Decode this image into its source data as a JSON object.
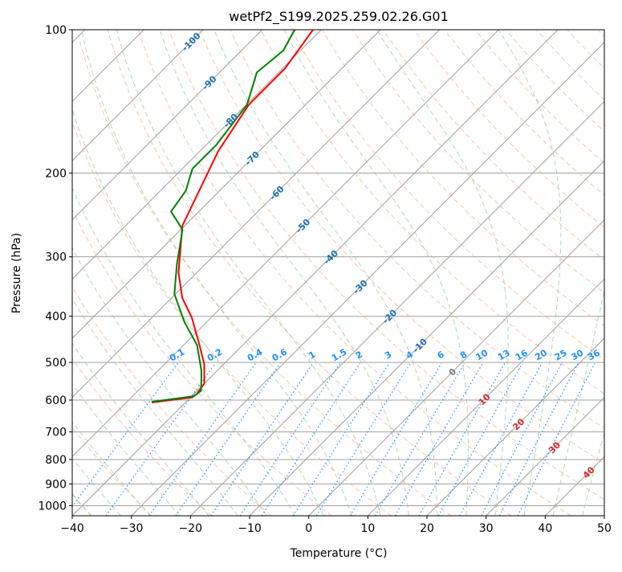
{
  "chart_data": {
    "type": "line",
    "subtype": "skew-t log-p",
    "title": "wetPf2_S199.2025.259.02.26.G01",
    "xlabel": "Temperature (°C)",
    "ylabel": "Pressure (hPa)",
    "xlim": [
      -40,
      50
    ],
    "ylim": [
      1050,
      100
    ],
    "x_ticks": [
      "−40",
      "−30",
      "−20",
      "−10",
      "0",
      "10",
      "20",
      "30",
      "40",
      "50"
    ],
    "x_tick_values": [
      -40,
      -30,
      -20,
      -10,
      0,
      10,
      20,
      30,
      40,
      50
    ],
    "y_ticks": [
      "100",
      "200",
      "300",
      "400",
      "500",
      "600",
      "700",
      "800",
      "900",
      "1000"
    ],
    "y_tick_values": [
      100,
      200,
      300,
      400,
      500,
      600,
      700,
      800,
      900,
      1000
    ],
    "grid": true,
    "series": [
      {
        "name": "temperature",
        "color": "#ff0000",
        "pressure": [
          100,
          120.6,
          143.7,
          180,
          257.9,
          324,
          366,
          403,
          460,
          504,
          554,
          583,
          592,
          607
        ],
        "values": [
          -81.4,
          -79.6,
          -79.6,
          -76.9,
          -70.4,
          -63.1,
          -58.2,
          -53.2,
          -47.3,
          -43.3,
          -40.0,
          -39.5,
          -39.7,
          -45.7
        ]
      },
      {
        "name": "dewpoint",
        "color": "#008000",
        "pressure": [
          100,
          110.6,
          122.9,
          143.7,
          174.6,
          196,
          218,
          241,
          263,
          312,
          359,
          411,
          460,
          520,
          546,
          574,
          589,
          605
        ],
        "values": [
          -84.5,
          -82.9,
          -83.7,
          -79.9,
          -78.3,
          -78.3,
          -75.7,
          -74.7,
          -69.7,
          -64.7,
          -60.2,
          -53.8,
          -47.7,
          -42.7,
          -41.0,
          -39.3,
          -39.7,
          -45.8
        ]
      }
    ],
    "isotherm_labels": [
      {
        "text": "-100",
        "value": -100,
        "color": "#1f6fb4"
      },
      {
        "text": "-90",
        "value": -90,
        "color": "#1f6fb4"
      },
      {
        "text": "-80",
        "value": -80,
        "color": "#1f6fb4"
      },
      {
        "text": "-70",
        "value": -70,
        "color": "#1f6fb4"
      },
      {
        "text": "-60",
        "value": -60,
        "color": "#1f6fb4"
      },
      {
        "text": "-50",
        "value": -50,
        "color": "#1f6fb4"
      },
      {
        "text": "-40",
        "value": -40,
        "color": "#1f6fb4"
      },
      {
        "text": "-30",
        "value": -30,
        "color": "#1f6fb4"
      },
      {
        "text": "-20",
        "value": -20,
        "color": "#1f6fb4"
      },
      {
        "text": "-10",
        "value": -10,
        "color": "#1f6fb4"
      },
      {
        "text": "0",
        "value": 0,
        "color": "#777777"
      },
      {
        "text": "10",
        "value": 10,
        "color": "#d62728"
      },
      {
        "text": "20",
        "value": 20,
        "color": "#d62728"
      },
      {
        "text": "30",
        "value": 30,
        "color": "#d62728"
      },
      {
        "text": "40",
        "value": 40,
        "color": "#d62728"
      }
    ],
    "mixing_ratio_labels": [
      "0.1",
      "0.2",
      "0.4",
      "0.6",
      "1",
      "1.5",
      "2",
      "3",
      "4",
      "6",
      "8",
      "10",
      "13",
      "16",
      "20",
      "25",
      "30",
      "36"
    ],
    "mixing_ratio_values": [
      0.1,
      0.2,
      0.4,
      0.6,
      1,
      1.5,
      2,
      3,
      4,
      6,
      8,
      10,
      13,
      16,
      20,
      25,
      30,
      36
    ],
    "mixing_ratio_top_pressure": 500,
    "isotherm_step": 10,
    "dry_adiabat_range_c": [
      -50,
      200,
      10
    ],
    "moist_adiabat_range_c": [
      -50,
      45,
      5
    ],
    "colors": {
      "isotherm": "#a0a0a0",
      "isobar": "#a0a0a0",
      "dry_adiabat": "#f4a582",
      "moist_adiabat": "#8fc98f",
      "mixing_ratio": "#1e90ff",
      "mixing_label": "#1e90ff"
    }
  }
}
